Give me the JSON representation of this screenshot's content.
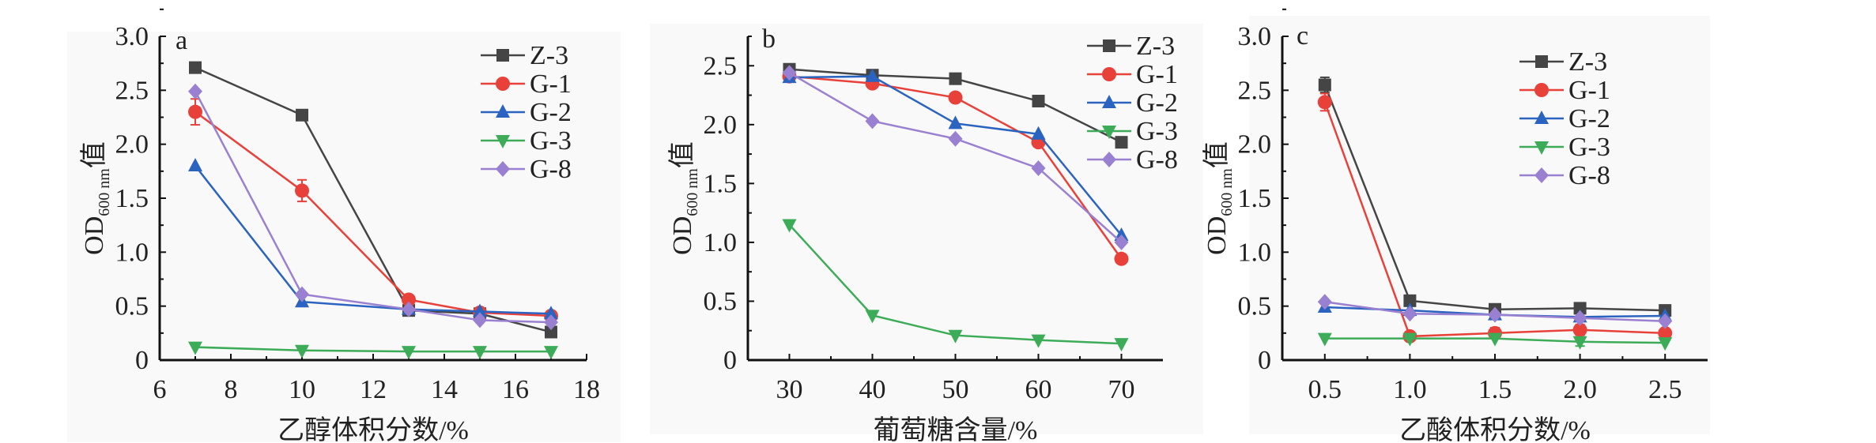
{
  "ylabel": {
    "main": "OD",
    "sub": "600 nm",
    "suffix": "值"
  },
  "series_colors": {
    "Z-3": "#454545",
    "G-1": "#e8413a",
    "G-2": "#2a63c0",
    "G-3": "#3dac58",
    "G-8": "#9a80d0"
  },
  "series_markers": {
    "Z-3": "square",
    "G-1": "circle",
    "G-2": "triangle-up",
    "G-3": "triangle-down",
    "G-8": "diamond"
  },
  "chart_data": [
    {
      "type": "line",
      "panel_label": "a",
      "xlabel": "乙醇体积分数/%",
      "ylabel": "OD600 nm值",
      "xlim": [
        6,
        18
      ],
      "ylim": [
        0,
        3.0
      ],
      "xticks": [
        "6",
        "8",
        "10",
        "12",
        "14",
        "16",
        "18"
      ],
      "yticks": [
        "0",
        "0.5",
        "1.0",
        "1.5",
        "2.0",
        "2.5",
        "3.0"
      ],
      "x": [
        7,
        10,
        13,
        15,
        17
      ],
      "series": [
        {
          "name": "Z-3",
          "values": [
            2.71,
            2.27,
            0.46,
            0.43,
            0.26
          ]
        },
        {
          "name": "G-1",
          "values": [
            2.3,
            1.57,
            0.56,
            0.44,
            0.41
          ],
          "errors": [
            0.12,
            0.1,
            0.04,
            0,
            0
          ]
        },
        {
          "name": "G-2",
          "values": [
            1.8,
            0.54,
            0.47,
            0.45,
            0.43
          ]
        },
        {
          "name": "G-3",
          "values": [
            0.12,
            0.09,
            0.08,
            0.08,
            0.08
          ]
        },
        {
          "name": "G-8",
          "values": [
            2.49,
            0.61,
            0.47,
            0.37,
            0.35
          ]
        }
      ],
      "legend": "top-right"
    },
    {
      "type": "line",
      "panel_label": "b",
      "xlabel": "葡萄糖含量/%",
      "ylabel": "OD600 nm值",
      "xlim": [
        25,
        75
      ],
      "ylim": [
        0,
        2.75
      ],
      "xticks": [
        "30",
        "40",
        "50",
        "60",
        "70"
      ],
      "yticks": [
        "0",
        "0.5",
        "1.0",
        "1.5",
        "2.0",
        "2.5"
      ],
      "x": [
        30,
        40,
        50,
        60,
        70
      ],
      "series": [
        {
          "name": "Z-3",
          "values": [
            2.47,
            2.42,
            2.39,
            2.2,
            1.85
          ]
        },
        {
          "name": "G-1",
          "values": [
            2.41,
            2.35,
            2.23,
            1.85,
            0.86
          ]
        },
        {
          "name": "G-2",
          "values": [
            2.4,
            2.41,
            2.01,
            1.92,
            1.06
          ]
        },
        {
          "name": "G-3",
          "values": [
            1.15,
            0.38,
            0.21,
            0.17,
            0.14
          ]
        },
        {
          "name": "G-8",
          "values": [
            2.44,
            2.03,
            1.88,
            1.63,
            1.0
          ]
        }
      ],
      "legend": "top-right"
    },
    {
      "type": "line",
      "panel_label": "c",
      "xlabel": "乙酸体积分数/%",
      "ylabel": "OD600 nm值",
      "xlim": [
        0.25,
        2.75
      ],
      "ylim": [
        0,
        3.0
      ],
      "xticks": [
        "0.5",
        "1.0",
        "1.5",
        "2.0",
        "2.5"
      ],
      "yticks": [
        "0",
        "0.5",
        "1.0",
        "1.5",
        "2.0",
        "2.5",
        "3.0"
      ],
      "x": [
        0.5,
        1.0,
        1.5,
        2.0,
        2.5
      ],
      "series": [
        {
          "name": "Z-3",
          "values": [
            2.55,
            0.55,
            0.47,
            0.48,
            0.46
          ],
          "errors": [
            0.07,
            0.03,
            0.02,
            0.02,
            0.02
          ]
        },
        {
          "name": "G-1",
          "values": [
            2.39,
            0.22,
            0.25,
            0.28,
            0.25
          ],
          "errors": [
            0.08,
            0.03,
            0.05,
            0.05,
            0.03
          ]
        },
        {
          "name": "G-2",
          "values": [
            0.49,
            0.46,
            0.42,
            0.4,
            0.41
          ]
        },
        {
          "name": "G-3",
          "values": [
            0.2,
            0.2,
            0.2,
            0.17,
            0.16
          ],
          "errors": [
            0,
            0,
            0,
            0.04,
            0
          ]
        },
        {
          "name": "G-8",
          "values": [
            0.54,
            0.43,
            0.42,
            0.39,
            0.36
          ]
        }
      ],
      "legend": "top-right"
    }
  ]
}
